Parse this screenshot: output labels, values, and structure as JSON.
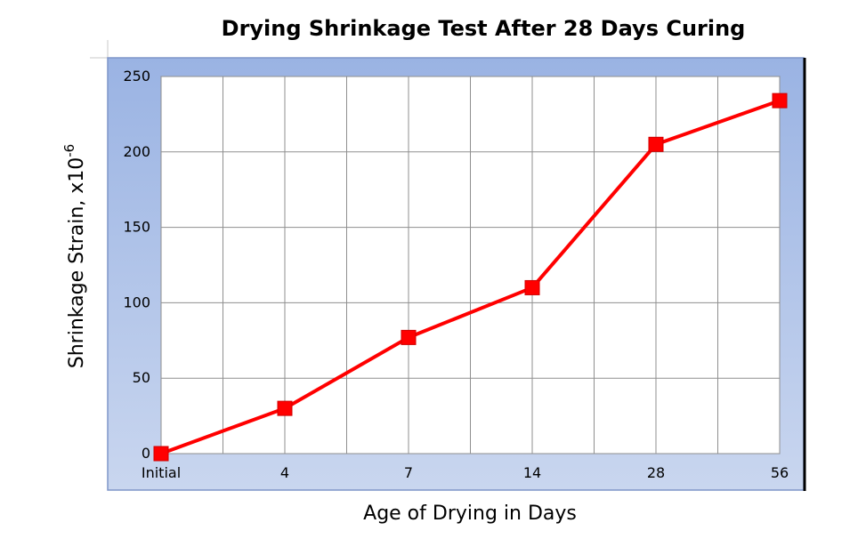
{
  "chart_data": {
    "type": "line",
    "title": "Drying Shrinkage Test After 28 Days Curing",
    "xlabel": "Age of Drying in Days",
    "ylabel": "Shrinkage Strain, x10",
    "ylabel_superscript": "-6",
    "categories": [
      "Initial",
      "4",
      "7",
      "14",
      "28",
      "56"
    ],
    "series": [
      {
        "values": [
          0,
          30,
          77,
          110,
          205,
          234
        ]
      }
    ],
    "ylim": [
      0,
      250
    ],
    "yticks": [
      0,
      50,
      100,
      150,
      200,
      250
    ],
    "grid": true,
    "colors": {
      "line": "#ff0000",
      "marker": "#ff0000",
      "frame_top": "#9ab3e3",
      "frame_bottom": "#c9d6ef",
      "frame_border": "#7f96c9"
    }
  }
}
